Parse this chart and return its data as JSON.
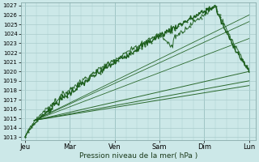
{
  "title": "",
  "xlabel": "Pression niveau de la mer( hPa )",
  "ylabel": "",
  "bg_color": "#cce8e8",
  "grid_color": "#aacccc",
  "line_color_dark": "#1a5c1a",
  "line_color_light": "#2d8c2d",
  "ylim": [
    1013,
    1027
  ],
  "yticks": [
    1013,
    1014,
    1015,
    1016,
    1017,
    1018,
    1019,
    1020,
    1021,
    1022,
    1023,
    1024,
    1025,
    1026,
    1027
  ],
  "xlabels": [
    "Jeu",
    "Mar",
    "Ven",
    "Sam",
    "Dim",
    "Lun"
  ],
  "figsize": [
    3.2,
    2.0
  ],
  "dpi": 100
}
